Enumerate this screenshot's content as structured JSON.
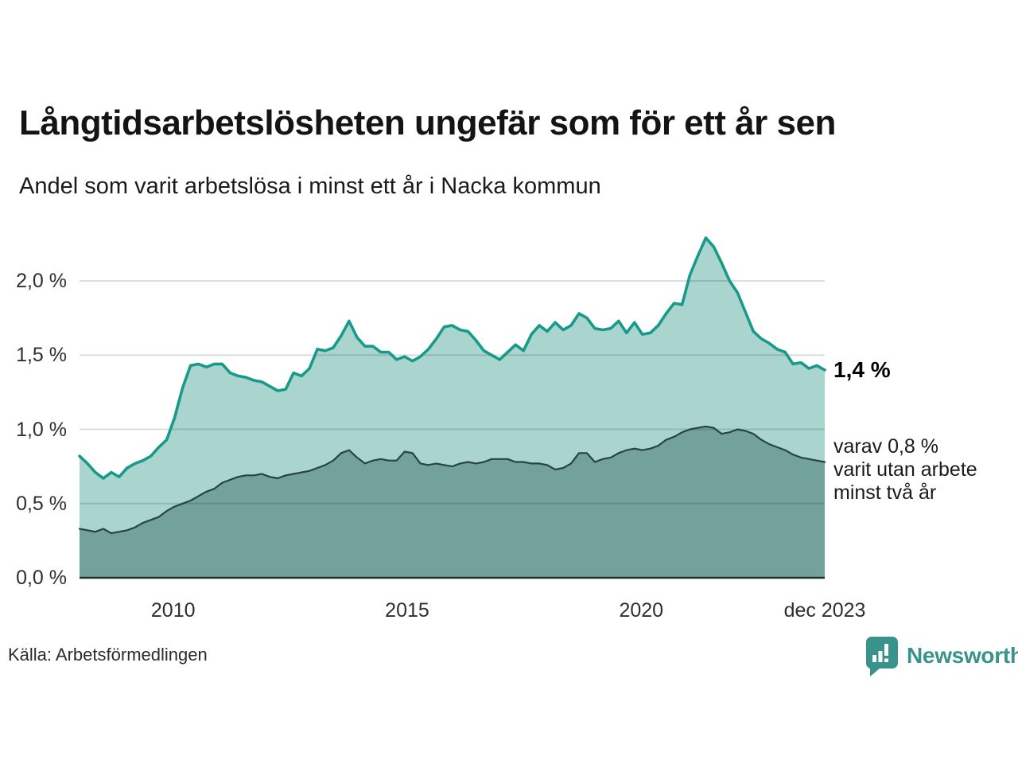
{
  "header": {
    "title": "Långtidsarbetslösheten ungefär som för ett år sen",
    "subtitle": "Andel som varit arbetslösa i minst ett år i Nacka kommun"
  },
  "annotations": {
    "latest_label": "1,4 %",
    "note_lines": [
      "varav 0,8 %",
      "varit utan arbete",
      "minst två år"
    ]
  },
  "footer": {
    "source": "Källa: Arbetsförmedlingen",
    "brand_name": "Newsworthy",
    "brand_color": "#39938b"
  },
  "chart_data": {
    "type": "area",
    "title": "Långtidsarbetslösheten ungefär som för ett år sen",
    "subtitle": "Andel som varit arbetslösa i minst ett år i Nacka kommun",
    "xlabel": "",
    "ylabel": "",
    "xlim_years": [
      2008.0,
      2023.92
    ],
    "ylim": [
      0,
      2.3
    ],
    "grid": true,
    "y_ticks": [
      "2,0 %",
      "1,5 %",
      "1,0 %",
      "0,5 %",
      "0,0 %"
    ],
    "y_tick_values": [
      2.0,
      1.5,
      1.0,
      0.5,
      0.0
    ],
    "x_ticks": [
      {
        "label": "2010",
        "year": 2010.0
      },
      {
        "label": "2015",
        "year": 2015.0
      },
      {
        "label": "2020",
        "year": 2020.0
      },
      {
        "label": "dec 2023",
        "year": 2023.92
      }
    ],
    "unit": "%",
    "series": [
      {
        "name": "Andel som varit arbetslösa i minst ett år",
        "line_color": "#189a8b",
        "fill_color": "#a9d5ce",
        "line_width": 3.6,
        "end_value": 1.4,
        "values": [
          0.82,
          0.77,
          0.71,
          0.67,
          0.71,
          0.68,
          0.74,
          0.77,
          0.79,
          0.82,
          0.88,
          0.93,
          1.08,
          1.28,
          1.43,
          1.44,
          1.42,
          1.44,
          1.44,
          1.38,
          1.36,
          1.35,
          1.33,
          1.32,
          1.29,
          1.26,
          1.27,
          1.38,
          1.36,
          1.41,
          1.54,
          1.53,
          1.55,
          1.63,
          1.73,
          1.62,
          1.56,
          1.56,
          1.52,
          1.52,
          1.47,
          1.49,
          1.46,
          1.49,
          1.54,
          1.61,
          1.69,
          1.7,
          1.67,
          1.66,
          1.6,
          1.53,
          1.5,
          1.47,
          1.52,
          1.57,
          1.53,
          1.64,
          1.7,
          1.66,
          1.72,
          1.67,
          1.7,
          1.78,
          1.75,
          1.68,
          1.67,
          1.68,
          1.73,
          1.65,
          1.72,
          1.64,
          1.65,
          1.7,
          1.78,
          1.85,
          1.84,
          2.04,
          2.17,
          2.29,
          2.23,
          2.12,
          2.0,
          1.92,
          1.79,
          1.66,
          1.61,
          1.58,
          1.54,
          1.52,
          1.44,
          1.45,
          1.41,
          1.43,
          1.4
        ]
      },
      {
        "name": "varav utan arbete minst två år",
        "line_color": "#28443f",
        "fill_color": "#72a29b",
        "line_width": 2.2,
        "end_value": 0.8,
        "values": [
          0.33,
          0.32,
          0.31,
          0.33,
          0.3,
          0.31,
          0.32,
          0.34,
          0.37,
          0.39,
          0.41,
          0.45,
          0.48,
          0.5,
          0.52,
          0.55,
          0.58,
          0.6,
          0.64,
          0.66,
          0.68,
          0.69,
          0.69,
          0.7,
          0.68,
          0.67,
          0.69,
          0.7,
          0.71,
          0.72,
          0.74,
          0.76,
          0.79,
          0.84,
          0.86,
          0.81,
          0.77,
          0.79,
          0.8,
          0.79,
          0.79,
          0.85,
          0.84,
          0.77,
          0.76,
          0.77,
          0.76,
          0.75,
          0.77,
          0.78,
          0.77,
          0.78,
          0.8,
          0.8,
          0.8,
          0.78,
          0.78,
          0.77,
          0.77,
          0.76,
          0.73,
          0.74,
          0.77,
          0.84,
          0.84,
          0.78,
          0.8,
          0.81,
          0.84,
          0.86,
          0.87,
          0.86,
          0.87,
          0.89,
          0.93,
          0.95,
          0.98,
          1.0,
          1.01,
          1.02,
          1.01,
          0.97,
          0.98,
          1.0,
          0.99,
          0.97,
          0.93,
          0.9,
          0.88,
          0.86,
          0.83,
          0.81,
          0.8,
          0.79,
          0.78
        ]
      }
    ],
    "gridline_color": "#dddddd",
    "baseline_color": "#22332f"
  }
}
